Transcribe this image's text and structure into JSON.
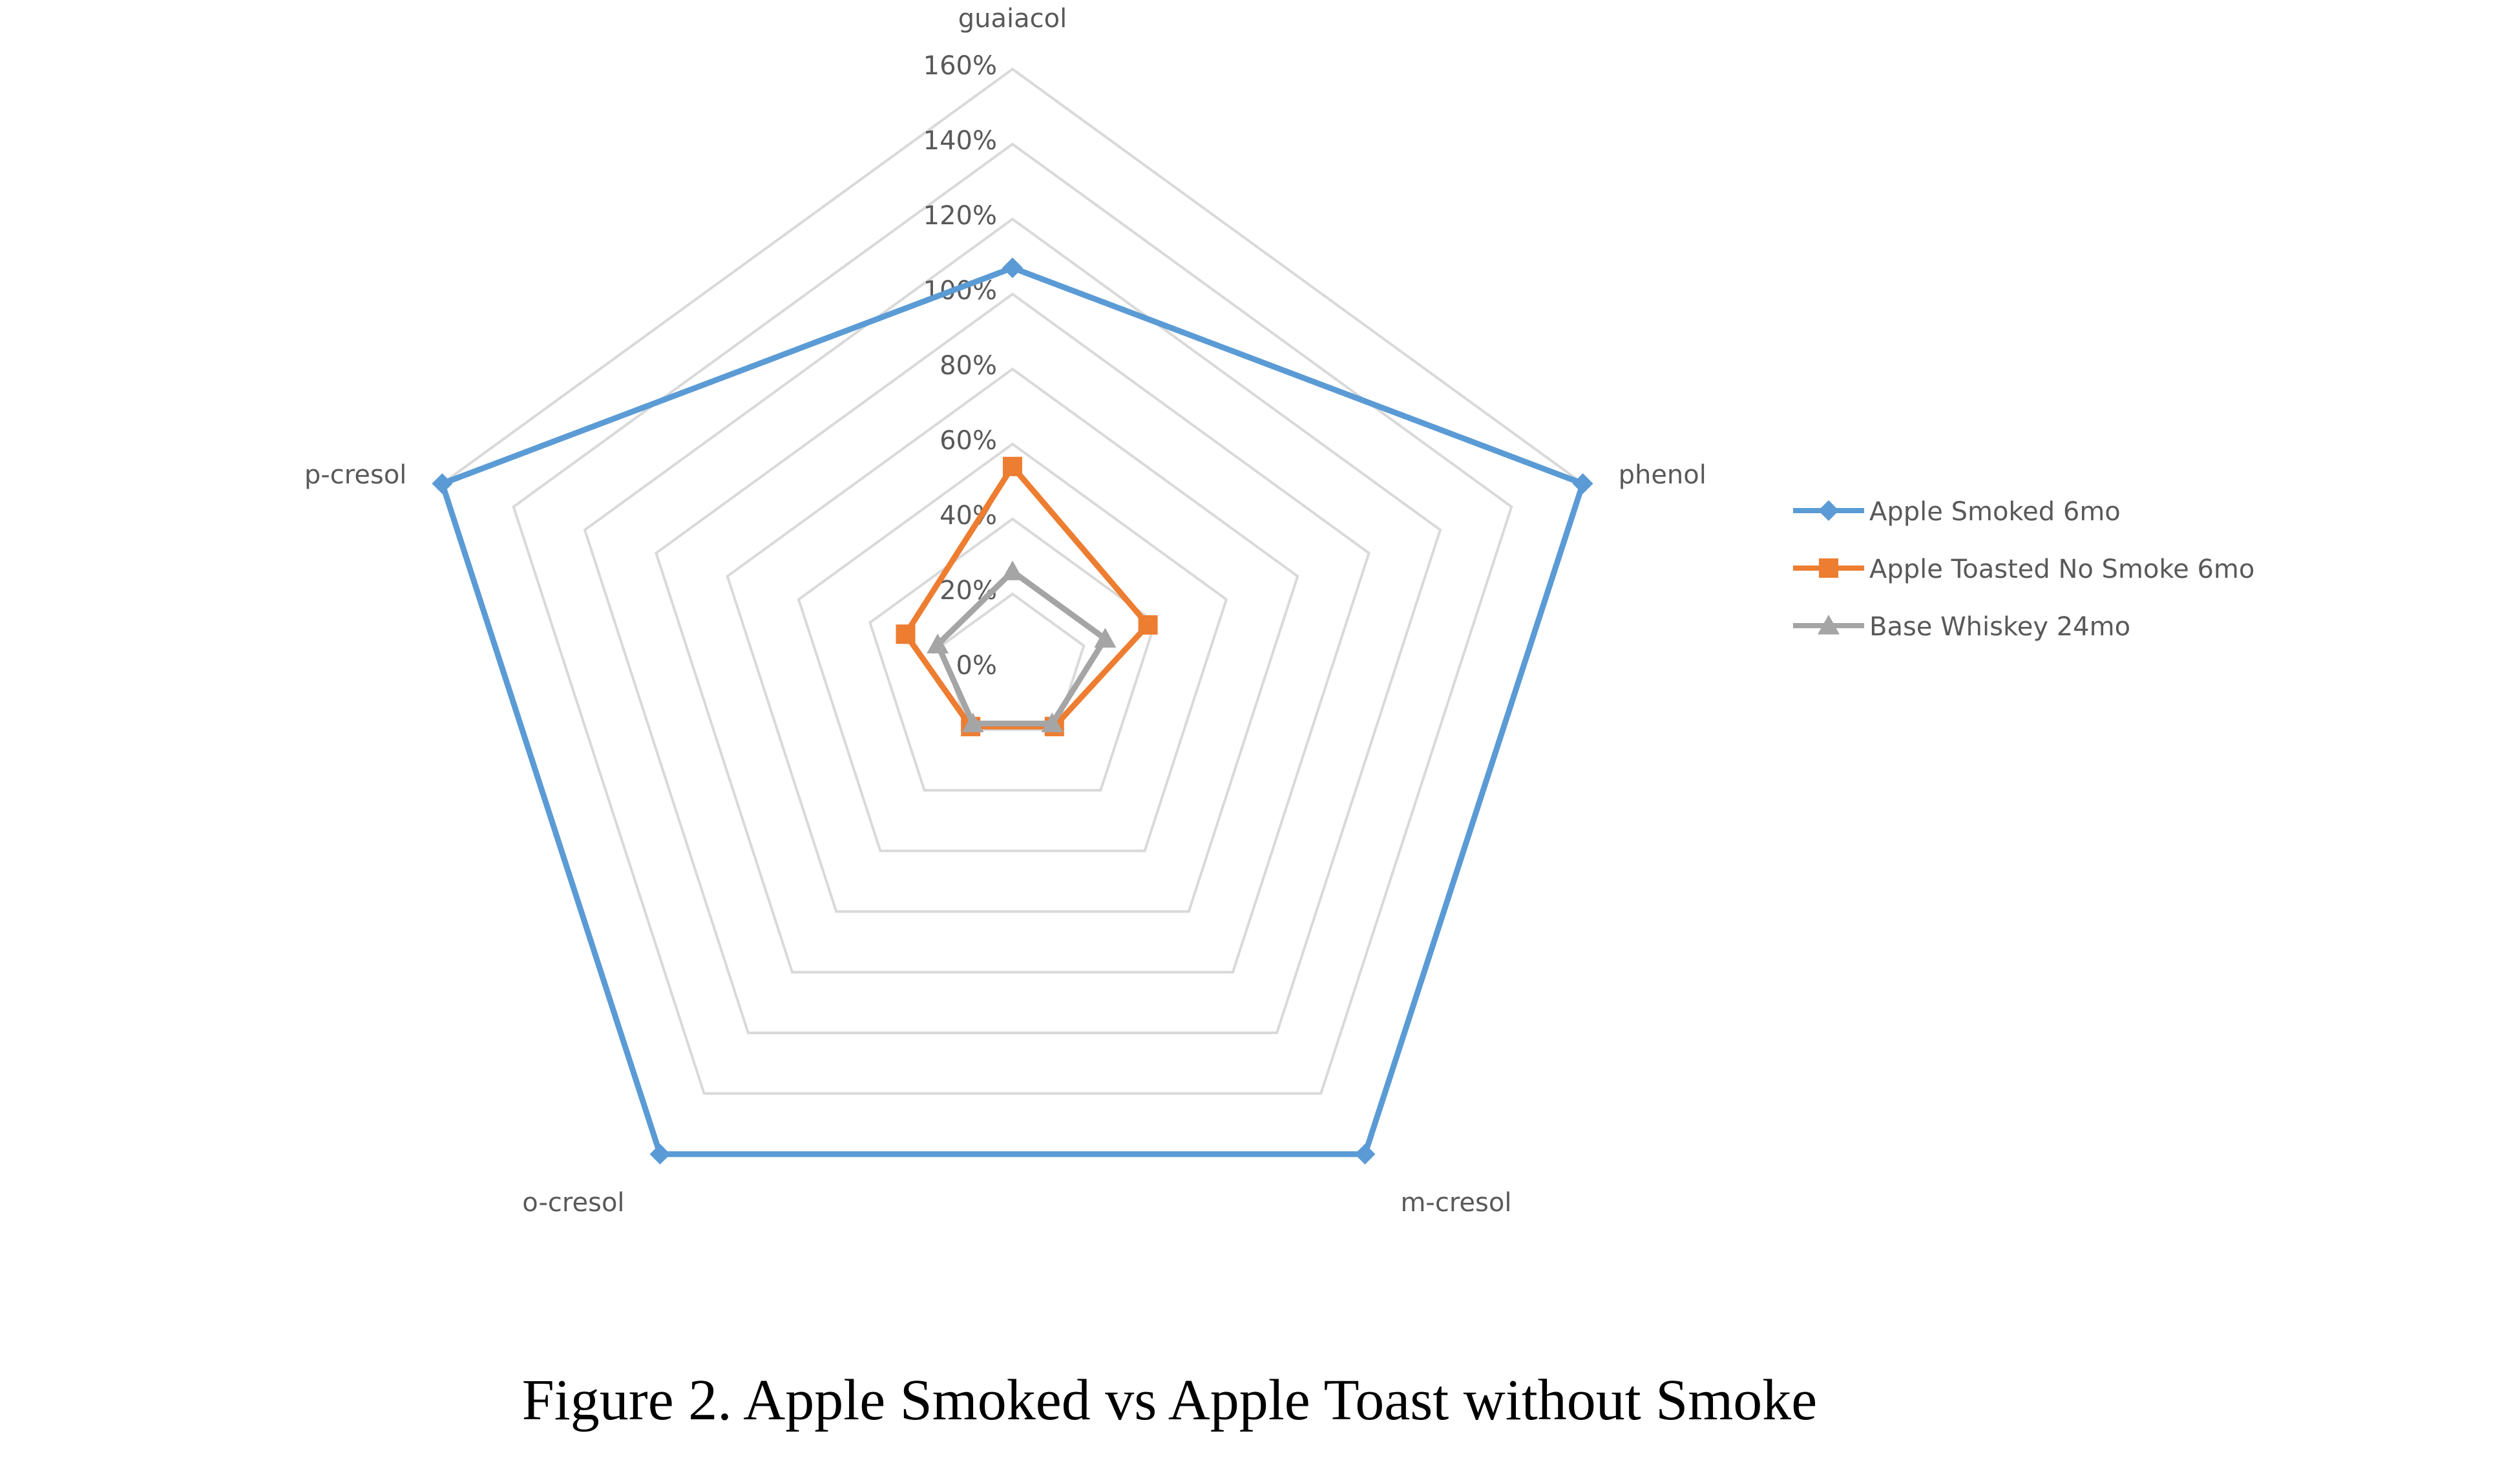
{
  "caption": "Figure 2. Apple Smoked vs Apple Toast without Smoke",
  "chart_data": {
    "type": "radar",
    "categories": [
      "guaiacol",
      "phenol",
      "m-cresol",
      "o-cresol",
      "p-cresol"
    ],
    "r_ticks": [
      "0%",
      "20%",
      "40%",
      "60%",
      "80%",
      "100%",
      "120%",
      "140%",
      "160%"
    ],
    "rlim": [
      0,
      160
    ],
    "grid": true,
    "legend_position": "right",
    "series": [
      {
        "name": "Apple Smoked 6mo",
        "marker": "diamond",
        "color": "#5b9bd5",
        "values": [
          107,
          160,
          160,
          160,
          160
        ]
      },
      {
        "name": "Apple Toasted No Smoke 6mo",
        "marker": "square",
        "color": "#ed7d31",
        "values": [
          54,
          38,
          19,
          19,
          30
        ]
      },
      {
        "name": "Base Whiskey 24mo",
        "marker": "triangle",
        "color": "#a5a5a5",
        "values": [
          26,
          26,
          18,
          18,
          21
        ]
      }
    ]
  }
}
